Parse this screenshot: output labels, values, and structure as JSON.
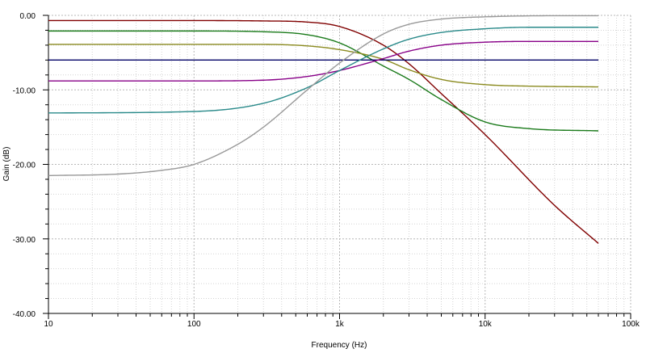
{
  "chart_data": {
    "type": "line",
    "xlabel": "Frequency (Hz)",
    "ylabel": "Gain (dB)",
    "x_scale": "log",
    "xlim": [
      10,
      100000
    ],
    "ylim": [
      -40,
      0
    ],
    "grid": true,
    "x_ticks": [
      10,
      100,
      1000,
      10000,
      100000
    ],
    "x_tick_labels": [
      "10",
      "100",
      "1k",
      "10k",
      "100k"
    ],
    "y_ticks": [
      0,
      -10,
      -20,
      -30,
      -40
    ],
    "y_tick_labels": [
      "0.00",
      "-10.00",
      "-20.00",
      "-30.00",
      "-40.00"
    ],
    "series": [
      {
        "color": "#800000",
        "x": [
          10,
          100,
          300,
          600,
          1000,
          2000,
          3000,
          5000,
          10000,
          30000,
          60000
        ],
        "y": [
          -0.7,
          -0.7,
          -0.75,
          -0.9,
          -1.5,
          -4,
          -6.5,
          -10.5,
          -16,
          -25.5,
          -30.6
        ]
      },
      {
        "color": "#1a7a1a",
        "x": [
          10,
          100,
          300,
          600,
          1000,
          2000,
          3000,
          5000,
          10000,
          20000,
          60000
        ],
        "y": [
          -2.1,
          -2.1,
          -2.2,
          -2.6,
          -3.7,
          -6.8,
          -8.6,
          -11.3,
          -14.3,
          -15.2,
          -15.5
        ]
      },
      {
        "color": "#8b8b20",
        "x": [
          10,
          100,
          300,
          600,
          1000,
          2000,
          3000,
          5000,
          10000,
          20000,
          60000
        ],
        "y": [
          -3.9,
          -3.9,
          -3.9,
          -4.1,
          -4.6,
          -5.9,
          -7.3,
          -8.6,
          -9.3,
          -9.5,
          -9.6
        ]
      },
      {
        "color": "#000066",
        "x": [
          10,
          60000
        ],
        "y": [
          -6.0,
          -6.0
        ]
      },
      {
        "color": "#880088",
        "x": [
          10,
          100,
          300,
          600,
          1000,
          2000,
          3000,
          5000,
          10000,
          20000,
          60000
        ],
        "y": [
          -8.8,
          -8.8,
          -8.7,
          -8.2,
          -7.4,
          -5.8,
          -4.8,
          -4.0,
          -3.6,
          -3.5,
          -3.5
        ]
      },
      {
        "color": "#2a8a8a",
        "x": [
          10,
          100,
          300,
          600,
          1000,
          2000,
          3000,
          5000,
          10000,
          20000,
          60000
        ],
        "y": [
          -13.1,
          -12.9,
          -11.8,
          -9.7,
          -7.4,
          -4.5,
          -3.2,
          -2.3,
          -1.8,
          -1.6,
          -1.6
        ]
      },
      {
        "color": "#999999",
        "x": [
          10,
          30,
          60,
          100,
          200,
          300,
          600,
          1000,
          2000,
          3000,
          5000,
          10000,
          30000,
          60000
        ],
        "y": [
          -21.5,
          -21.3,
          -20.8,
          -20.0,
          -17.3,
          -15.0,
          -10.0,
          -6.4,
          -2.5,
          -1.2,
          -0.5,
          -0.2,
          -0.05,
          -0.05
        ]
      }
    ]
  }
}
